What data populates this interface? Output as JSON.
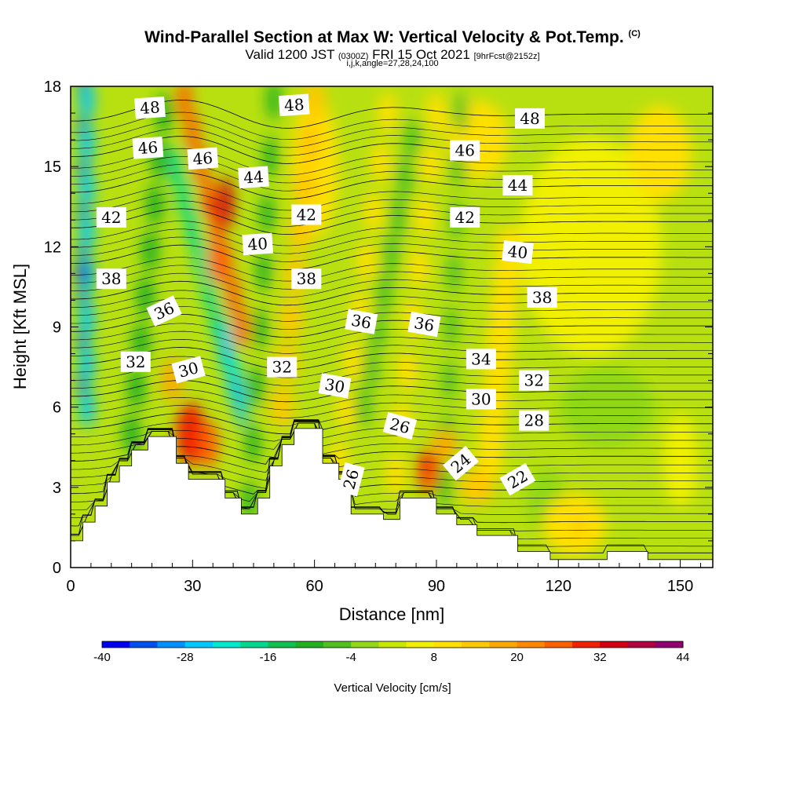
{
  "header": {
    "title": "Wind-Parallel Section at Max W: Vertical Velocity & Pot.Temp.",
    "copyright": "(C)",
    "valid_prefix": "Valid 1200 JST",
    "utc": "(0300Z)",
    "valid_date": "FRI 15 Oct 2021",
    "forecast": "[9hrFcst@2152z]",
    "params": "i,j,k,angle=27,28,24,100"
  },
  "chart_data": {
    "type": "heatmap",
    "title": "Wind-Parallel Section at Max W: Vertical Velocity & Pot.Temp.",
    "xlabel": "Distance [nm]",
    "ylabel": "Height [Kft MSL]",
    "xlim": [
      0,
      158
    ],
    "ylim": [
      0,
      18
    ],
    "xticks": [
      "0",
      "30",
      "60",
      "90",
      "120",
      "150"
    ],
    "yticks": [
      "0",
      "3",
      "6",
      "9",
      "12",
      "15",
      "18"
    ],
    "colorbar": {
      "label": "Vertical Velocity [cm/s]",
      "tick_labels": [
        "-40",
        "-28",
        "-16",
        "-4",
        "8",
        "20",
        "32",
        "44"
      ],
      "bin_edges": [
        -40,
        -36,
        -32,
        -28,
        -24,
        -20,
        -16,
        -12,
        -8,
        -4,
        0,
        4,
        8,
        12,
        16,
        20,
        24,
        28,
        32,
        36,
        40,
        44
      ],
      "colors": [
        "#0000f0",
        "#0050f0",
        "#0090ff",
        "#00c8ff",
        "#00e8d0",
        "#00d890",
        "#10c050",
        "#20b020",
        "#50c020",
        "#90d818",
        "#c8e800",
        "#f0f000",
        "#ffe000",
        "#ffc800",
        "#ffa800",
        "#ff8800",
        "#ff6000",
        "#f02000",
        "#d00010",
        "#b00040",
        "#900070"
      ]
    },
    "terrain_kft": [
      [
        0,
        1
      ],
      [
        3,
        1
      ],
      [
        3,
        1.7
      ],
      [
        6,
        1.7
      ],
      [
        6,
        2.3
      ],
      [
        9,
        2.3
      ],
      [
        9,
        3.2
      ],
      [
        12,
        3.2
      ],
      [
        12,
        3.8
      ],
      [
        15,
        3.8
      ],
      [
        15,
        4.4
      ],
      [
        19,
        4.4
      ],
      [
        19,
        4.9
      ],
      [
        26,
        4.9
      ],
      [
        26,
        3.9
      ],
      [
        29,
        3.9
      ],
      [
        29,
        3.3
      ],
      [
        38,
        3.3
      ],
      [
        38,
        2.6
      ],
      [
        42,
        2.6
      ],
      [
        42,
        2.0
      ],
      [
        46,
        2.0
      ],
      [
        46,
        2.6
      ],
      [
        49,
        2.6
      ],
      [
        49,
        3.8
      ],
      [
        52,
        3.8
      ],
      [
        52,
        4.6
      ],
      [
        55,
        4.6
      ],
      [
        55,
        5.2
      ],
      [
        62,
        5.2
      ],
      [
        62,
        3.9
      ],
      [
        66,
        3.9
      ],
      [
        66,
        3.3
      ],
      [
        69,
        3.3
      ],
      [
        69,
        2.0
      ],
      [
        77,
        2.0
      ],
      [
        77,
        1.8
      ],
      [
        81,
        1.8
      ],
      [
        81,
        2.6
      ],
      [
        90,
        2.6
      ],
      [
        90,
        2.0
      ],
      [
        95,
        2.0
      ],
      [
        95,
        1.6
      ],
      [
        100,
        1.6
      ],
      [
        100,
        1.2
      ],
      [
        110,
        1.2
      ],
      [
        110,
        0.6
      ],
      [
        118,
        0.6
      ],
      [
        118,
        0.3
      ],
      [
        132,
        0.3
      ],
      [
        132,
        0.6
      ],
      [
        142,
        0.6
      ],
      [
        142,
        0.3
      ],
      [
        158,
        0.3
      ]
    ],
    "isentropes": {
      "levels": [
        22,
        24,
        26,
        28,
        30,
        32,
        34,
        36,
        38,
        40,
        42,
        44,
        46,
        48
      ],
      "labels": [
        {
          "text": "48",
          "x": 19.5,
          "y": 17.2,
          "angle": -4
        },
        {
          "text": "48",
          "x": 55,
          "y": 17.3,
          "angle": -4
        },
        {
          "text": "48",
          "x": 113,
          "y": 16.8,
          "angle": 0
        },
        {
          "text": "46",
          "x": 19,
          "y": 15.7,
          "angle": -4
        },
        {
          "text": "46",
          "x": 32.5,
          "y": 15.3,
          "angle": -4
        },
        {
          "text": "46",
          "x": 97,
          "y": 15.6,
          "angle": 0
        },
        {
          "text": "44",
          "x": 45,
          "y": 14.6,
          "angle": -4
        },
        {
          "text": "44",
          "x": 110,
          "y": 14.3,
          "angle": 0
        },
        {
          "text": "42",
          "x": 10,
          "y": 13.1,
          "angle": 0
        },
        {
          "text": "42",
          "x": 58,
          "y": 13.2,
          "angle": 0
        },
        {
          "text": "42",
          "x": 97,
          "y": 13.1,
          "angle": 0
        },
        {
          "text": "40",
          "x": 46,
          "y": 12.1,
          "angle": -4
        },
        {
          "text": "40",
          "x": 110,
          "y": 11.8,
          "angle": 6
        },
        {
          "text": "38",
          "x": 10,
          "y": 10.8,
          "angle": 0
        },
        {
          "text": "38",
          "x": 58,
          "y": 10.8,
          "angle": 0
        },
        {
          "text": "38",
          "x": 116,
          "y": 10.1,
          "angle": 0
        },
        {
          "text": "36",
          "x": 23,
          "y": 9.6,
          "angle": -25
        },
        {
          "text": "36",
          "x": 71.5,
          "y": 9.2,
          "angle": 10
        },
        {
          "text": "36",
          "x": 87,
          "y": 9.1,
          "angle": 10
        },
        {
          "text": "34",
          "x": 101,
          "y": 7.8,
          "angle": 0
        },
        {
          "text": "32",
          "x": 16,
          "y": 7.7,
          "angle": 0
        },
        {
          "text": "32",
          "x": 52,
          "y": 7.5,
          "angle": 0
        },
        {
          "text": "32",
          "x": 114,
          "y": 7.0,
          "angle": 0
        },
        {
          "text": "30",
          "x": 29,
          "y": 7.4,
          "angle": -15
        },
        {
          "text": "30",
          "x": 65,
          "y": 6.8,
          "angle": 10
        },
        {
          "text": "30",
          "x": 101,
          "y": 6.3,
          "angle": 0
        },
        {
          "text": "28",
          "x": 114,
          "y": 5.5,
          "angle": 0
        },
        {
          "text": "26",
          "x": 81,
          "y": 5.3,
          "angle": 15
        },
        {
          "text": "26",
          "x": 69,
          "y": 3.3,
          "angle": -75
        },
        {
          "text": "24",
          "x": 96,
          "y": 3.9,
          "angle": -40
        },
        {
          "text": "22",
          "x": 110,
          "y": 3.3,
          "angle": -30
        }
      ]
    },
    "velocity_features": [
      {
        "kind": "downdraft",
        "w": -40,
        "x": 3,
        "y": 11,
        "note": "strong negative band along left edge"
      },
      {
        "kind": "downdraft",
        "w": -24,
        "x": 40,
        "y": 7.5,
        "note": "descending lee wave core"
      },
      {
        "kind": "updraft",
        "w": 28,
        "x": 34,
        "y": 13.5,
        "note": "tilted updraft aloft"
      },
      {
        "kind": "updraft",
        "w": 30,
        "x": 30,
        "y": 5,
        "note": "low-level updraft over ridge"
      },
      {
        "kind": "updraft",
        "w": 26,
        "x": 88,
        "y": 3.4,
        "note": "low-level updraft"
      },
      {
        "kind": "updraft",
        "w": 14,
        "x": 125,
        "y": 1.5,
        "note": "broad weak updraft"
      }
    ]
  }
}
